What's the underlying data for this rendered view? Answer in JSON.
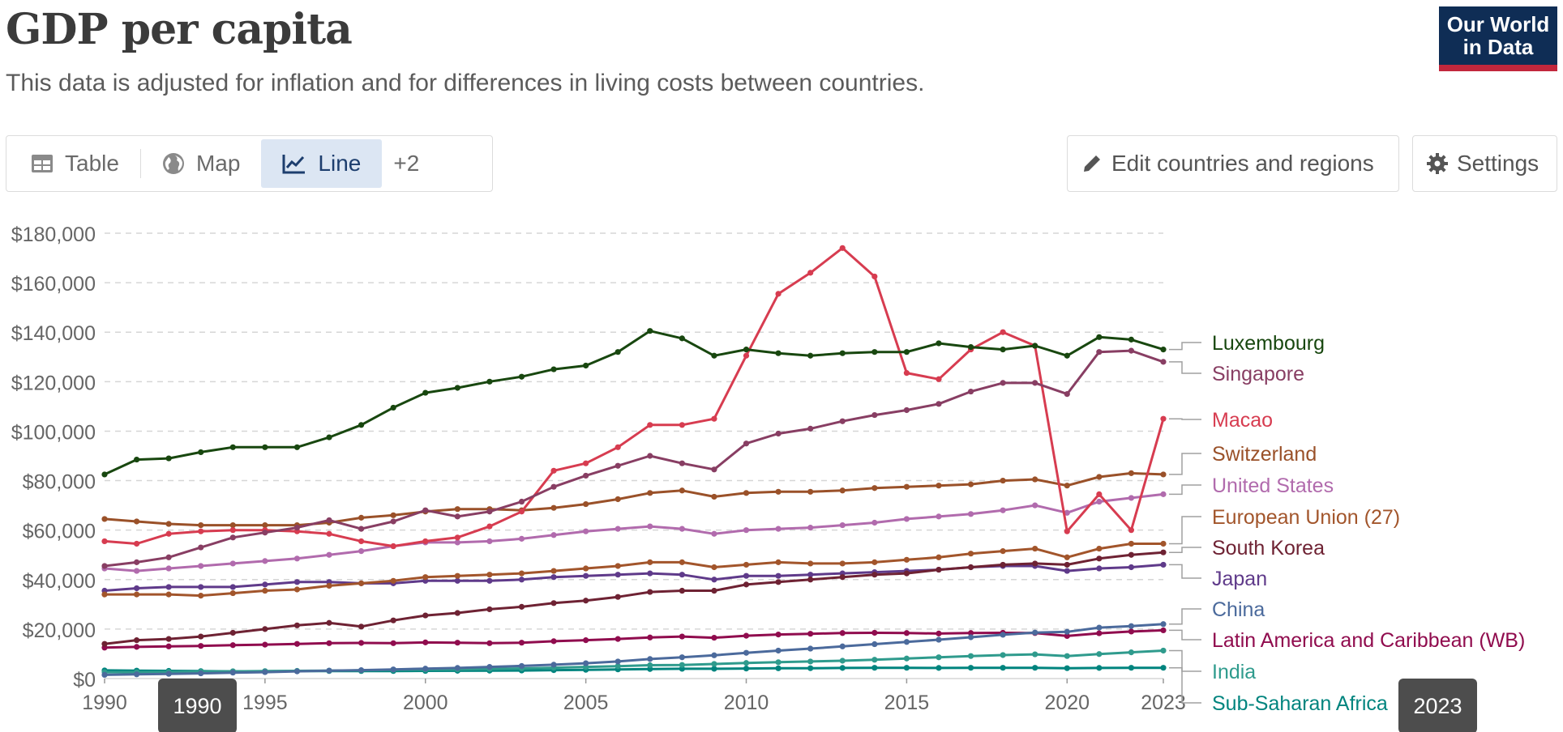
{
  "header": {
    "title": "GDP per capita",
    "subtitle": "This data is adjusted for inflation and for differences in living costs between countries.",
    "logo_line1": "Our World",
    "logo_line2": "in Data"
  },
  "tabs": [
    {
      "label": "Table",
      "icon": "table-icon",
      "active": false
    },
    {
      "label": "Map",
      "icon": "globe-icon",
      "active": false
    },
    {
      "label": "Line",
      "icon": "line-chart-icon",
      "active": true
    },
    {
      "label": "+2",
      "icon": "",
      "active": false
    }
  ],
  "toolbar": {
    "edit_label": "Edit countries and regions",
    "settings_label": "Settings"
  },
  "timeline": {
    "start_label": "1990",
    "end_label": "2023"
  },
  "chart_data": {
    "type": "line",
    "ylim": [
      0,
      180000
    ],
    "yticks": [
      0,
      20000,
      40000,
      60000,
      80000,
      100000,
      120000,
      140000,
      160000,
      180000
    ],
    "ytick_labels": [
      "$0",
      "$20,000",
      "$40,000",
      "$60,000",
      "$80,000",
      "$100,000",
      "$120,000",
      "$140,000",
      "$160,000",
      "$180,000"
    ],
    "xticks": [
      1990,
      1995,
      2000,
      2005,
      2010,
      2015,
      2020,
      2023
    ],
    "xlim": [
      1990,
      2023
    ],
    "grid": true,
    "legend_placement": "right",
    "x": [
      1990,
      1991,
      1992,
      1993,
      1994,
      1995,
      1996,
      1997,
      1998,
      1999,
      2000,
      2001,
      2002,
      2003,
      2004,
      2005,
      2006,
      2007,
      2008,
      2009,
      2010,
      2011,
      2012,
      2013,
      2014,
      2015,
      2016,
      2017,
      2018,
      2019,
      2020,
      2021,
      2022,
      2023
    ],
    "series": [
      {
        "name": "Luxembourg",
        "color": "#18470f",
        "values": [
          82500,
          88500,
          89000,
          91500,
          93500,
          93500,
          93500,
          97500,
          102500,
          109500,
          115500,
          117500,
          120000,
          122000,
          125000,
          126500,
          132000,
          140500,
          137500,
          130500,
          133000,
          131500,
          130500,
          131500,
          132000,
          132000,
          135500,
          134000,
          133000,
          134500,
          130500,
          138000,
          137000,
          133000
        ]
      },
      {
        "name": "Singapore",
        "color": "#883e63",
        "values": [
          45500,
          47000,
          49000,
          53000,
          57000,
          59000,
          61000,
          64000,
          60500,
          63500,
          68000,
          65500,
          67500,
          71500,
          77500,
          82000,
          86000,
          90000,
          87000,
          84500,
          95000,
          99000,
          101000,
          104000,
          106500,
          108500,
          111000,
          116000,
          119500,
          119500,
          115000,
          132000,
          132500,
          128000
        ]
      },
      {
        "name": "Macao",
        "color": "#d73c50",
        "values": [
          55500,
          54500,
          58500,
          59500,
          60000,
          60000,
          59500,
          58500,
          55500,
          53500,
          55500,
          57000,
          61500,
          67500,
          84000,
          87000,
          93500,
          102500,
          102500,
          105000,
          130500,
          155500,
          164000,
          174000,
          162500,
          123500,
          121000,
          133000,
          140000,
          134500,
          59500,
          74500,
          60000,
          105000
        ]
      },
      {
        "name": "Switzerland",
        "color": "#9a5129",
        "values": [
          64500,
          63500,
          62500,
          62000,
          62000,
          62000,
          62000,
          63000,
          65000,
          66000,
          67500,
          68500,
          68500,
          68000,
          69000,
          70500,
          72500,
          75000,
          76000,
          73500,
          75000,
          75500,
          75500,
          76000,
          77000,
          77500,
          78000,
          78500,
          80000,
          80500,
          78000,
          81500,
          83000,
          82500
        ]
      },
      {
        "name": "United States",
        "color": "#b16bad",
        "values": [
          44500,
          43500,
          44500,
          45500,
          46500,
          47500,
          48500,
          50000,
          51500,
          53500,
          55000,
          55000,
          55500,
          56500,
          58000,
          59500,
          60500,
          61500,
          60500,
          58500,
          60000,
          60500,
          61000,
          62000,
          63000,
          64500,
          65500,
          66500,
          68000,
          70000,
          67000,
          71500,
          73000,
          74500
        ]
      },
      {
        "name": "European Union (27)",
        "color": "#a2552b",
        "values": [
          34000,
          34000,
          34000,
          33500,
          34500,
          35500,
          36000,
          37500,
          38500,
          39500,
          41000,
          41500,
          42000,
          42500,
          43500,
          44500,
          45500,
          47000,
          47000,
          45000,
          46000,
          47000,
          46500,
          46500,
          47000,
          48000,
          49000,
          50500,
          51500,
          52500,
          49000,
          52500,
          54500,
          54500
        ]
      },
      {
        "name": "South Korea",
        "color": "#6e2233",
        "values": [
          14000,
          15500,
          16000,
          17000,
          18500,
          20000,
          21500,
          22500,
          21000,
          23500,
          25500,
          26500,
          28000,
          29000,
          30500,
          31500,
          33000,
          35000,
          35500,
          35500,
          38000,
          39000,
          40000,
          41000,
          42000,
          42500,
          44000,
          45000,
          46000,
          46500,
          46000,
          48500,
          50000,
          51000
        ]
      },
      {
        "name": "Japan",
        "color": "#5f3a8a",
        "values": [
          35500,
          36500,
          37000,
          37000,
          37000,
          38000,
          39000,
          39000,
          38500,
          38500,
          39500,
          39500,
          39500,
          40000,
          41000,
          41500,
          42000,
          42500,
          42000,
          40000,
          41500,
          41500,
          42000,
          42500,
          43000,
          43500,
          44000,
          45000,
          45500,
          45500,
          43500,
          44500,
          45000,
          46000
        ]
      },
      {
        "name": "China",
        "color": "#4b6a9c",
        "values": [
          1500,
          1700,
          1900,
          2100,
          2400,
          2600,
          2900,
          3200,
          3400,
          3700,
          4000,
          4300,
          4700,
          5100,
          5600,
          6200,
          6900,
          7900,
          8600,
          9400,
          10400,
          11300,
          12100,
          13000,
          13900,
          14800,
          15700,
          16700,
          17700,
          18600,
          18900,
          20600,
          21200,
          22000
        ]
      },
      {
        "name": "Latin America and Caribbean (WB)",
        "color": "#900c4e",
        "values": [
          12500,
          12800,
          13000,
          13200,
          13500,
          13700,
          14000,
          14300,
          14400,
          14300,
          14600,
          14500,
          14300,
          14500,
          15100,
          15500,
          16000,
          16600,
          17000,
          16500,
          17300,
          17800,
          18100,
          18400,
          18500,
          18400,
          18200,
          18400,
          18500,
          18400,
          17200,
          18300,
          19000,
          19500
        ]
      },
      {
        "name": "India",
        "color": "#2f9b8d",
        "values": [
          2600,
          2600,
          2700,
          2800,
          2900,
          3000,
          3100,
          3200,
          3300,
          3500,
          3600,
          3700,
          3900,
          4100,
          4400,
          4700,
          5000,
          5400,
          5500,
          5900,
          6300,
          6600,
          6900,
          7200,
          7600,
          8100,
          8600,
          9100,
          9500,
          9800,
          9100,
          9900,
          10600,
          11300
        ]
      },
      {
        "name": "Sub-Saharan Africa",
        "color": "#00847e",
        "values": [
          3300,
          3200,
          3100,
          3000,
          2900,
          2950,
          3000,
          3050,
          3050,
          3050,
          3100,
          3150,
          3200,
          3250,
          3400,
          3550,
          3700,
          3850,
          3950,
          3950,
          4050,
          4150,
          4200,
          4300,
          4350,
          4350,
          4300,
          4350,
          4350,
          4350,
          4200,
          4300,
          4350,
          4350
        ]
      }
    ]
  }
}
